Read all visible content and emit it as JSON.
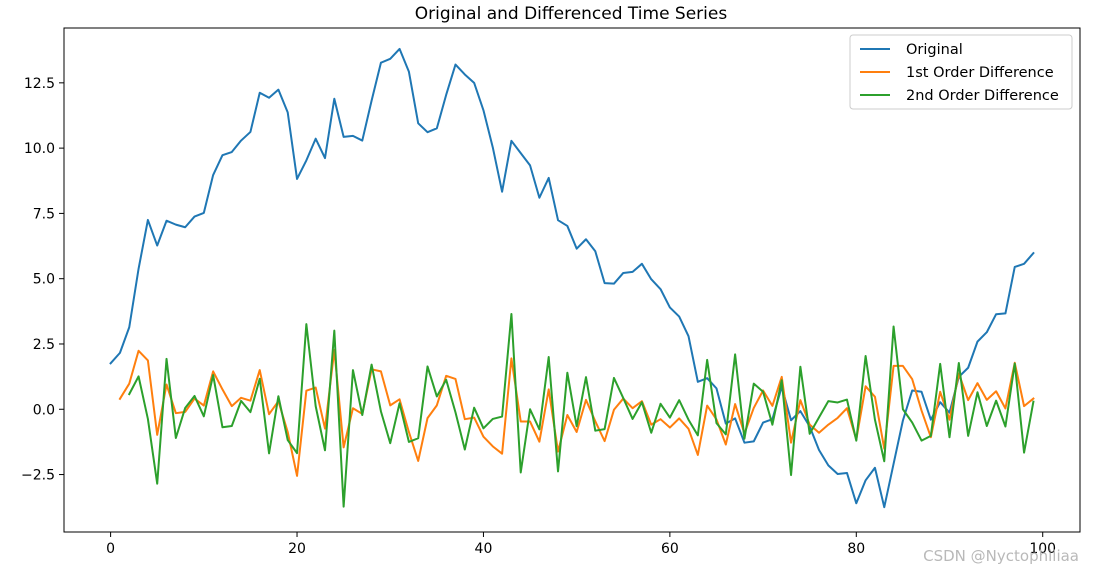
{
  "watermark": "CSDN @Nyctophiliaa",
  "chart_data": {
    "type": "line",
    "title": "Original and Differenced Time Series",
    "xlabel": "",
    "ylabel": "",
    "xlim": [
      -5,
      104
    ],
    "ylim": [
      -4.7,
      14.6
    ],
    "xticks": [
      0,
      20,
      40,
      60,
      80,
      100
    ],
    "xtick_labels": [
      "0",
      "20",
      "40",
      "60",
      "80",
      "100"
    ],
    "yticks": [
      -2.5,
      0.0,
      2.5,
      5.0,
      7.5,
      10.0,
      12.5
    ],
    "ytick_labels": [
      "−2.5",
      "0.0",
      "2.5",
      "5.0",
      "7.5",
      "10.0",
      "12.5"
    ],
    "grid": false,
    "legend_position": "top-right",
    "series": [
      {
        "name": "Original",
        "color": "#1f77b4",
        "x_start": 0,
        "values": [
          1.76,
          2.16,
          3.14,
          5.38,
          7.25,
          6.27,
          7.22,
          7.07,
          6.97,
          7.38,
          7.52,
          8.97,
          9.73,
          9.85,
          10.29,
          10.62,
          12.12,
          11.93,
          12.24,
          11.37,
          8.82,
          9.53,
          10.36,
          9.62,
          11.89,
          10.43,
          10.47,
          10.29,
          11.82,
          13.27,
          13.42,
          13.8,
          12.93,
          10.95,
          10.61,
          10.76,
          12.04,
          13.2,
          12.82,
          12.5,
          11.45,
          10.03,
          8.33,
          10.28,
          9.81,
          9.34,
          8.1,
          8.86,
          7.24,
          7.02,
          6.15,
          6.51,
          6.05,
          4.83,
          4.81,
          5.22,
          5.26,
          5.57,
          4.98,
          4.6,
          3.9,
          3.55,
          2.8,
          1.05,
          1.19,
          0.8,
          -0.55,
          -0.35,
          -1.28,
          -1.23,
          -0.51,
          -0.38,
          0.86,
          -0.42,
          -0.07,
          -0.66,
          -1.56,
          -2.15,
          -2.48,
          -2.44,
          -3.6,
          -2.72,
          -2.24,
          -3.75,
          -2.09,
          -0.43,
          0.72,
          0.67,
          -0.4,
          0.27,
          -0.13,
          1.24,
          1.59,
          2.59,
          2.95,
          3.64,
          3.67,
          5.45,
          5.57,
          5.98
        ]
      },
      {
        "name": "1st Order Difference",
        "color": "#ff7f0e",
        "x_start": 1,
        "values": [
          0.4,
          0.98,
          2.24,
          1.87,
          -0.98,
          0.95,
          -0.15,
          -0.1,
          0.41,
          0.14,
          1.45,
          0.76,
          0.12,
          0.44,
          0.33,
          1.5,
          -0.19,
          0.31,
          -0.87,
          -2.55,
          0.71,
          0.83,
          -0.74,
          2.27,
          -1.46,
          0.04,
          -0.18,
          1.53,
          1.45,
          0.15,
          0.38,
          -0.87,
          -1.98,
          -0.34,
          0.15,
          1.28,
          1.16,
          -0.38,
          -0.32,
          -1.05,
          -1.42,
          -1.7,
          1.95,
          -0.47,
          -0.47,
          -1.24,
          0.76,
          -1.62,
          -0.22,
          -0.87,
          0.36,
          -0.46,
          -1.22,
          -0.02,
          0.41,
          0.04,
          0.31,
          -0.59,
          -0.38,
          -0.7,
          -0.35,
          -0.75,
          -1.75,
          0.14,
          -0.39,
          -1.35,
          0.2,
          -0.93,
          0.05,
          0.72,
          0.13,
          1.24,
          -1.28,
          0.35,
          -0.59,
          -0.9,
          -0.59,
          -0.33,
          0.04,
          -1.16,
          0.88,
          0.48,
          -1.51,
          1.66,
          1.66,
          1.15,
          -0.05,
          -1.07,
          0.67,
          -0.4,
          1.37,
          0.35,
          1.0,
          0.36,
          0.69,
          0.03,
          1.78,
          0.12,
          0.41
        ]
      },
      {
        "name": "2nd Order Difference",
        "color": "#2ca02c",
        "x_start": 2,
        "values": [
          0.58,
          1.26,
          -0.37,
          -2.85,
          1.93,
          -1.1,
          0.05,
          0.51,
          -0.27,
          1.31,
          -0.69,
          -0.64,
          0.32,
          -0.11,
          1.17,
          -1.69,
          0.5,
          -1.18,
          -1.68,
          3.26,
          0.12,
          -1.57,
          3.01,
          -3.73,
          1.5,
          -0.22,
          1.71,
          -0.08,
          -1.3,
          0.23,
          -1.25,
          -1.11,
          1.64,
          0.49,
          1.13,
          -0.12,
          -1.54,
          0.06,
          -0.73,
          -0.37,
          -0.28,
          3.65,
          -2.42,
          0.0,
          -0.77,
          2.0,
          -2.38,
          1.4,
          -0.65,
          1.23,
          -0.82,
          -0.76,
          1.2,
          0.43,
          -0.37,
          0.27,
          -0.9,
          0.21,
          -0.32,
          0.35,
          -0.4,
          -1.0,
          1.89,
          -0.53,
          -0.96,
          2.1,
          -1.13,
          0.98,
          0.67,
          -0.59,
          1.11,
          -2.52,
          1.63,
          -0.94,
          -0.31,
          0.31,
          0.26,
          0.37,
          -1.2,
          2.04,
          -0.4,
          -1.99,
          3.17,
          0.0,
          -0.51,
          -1.2,
          -1.02,
          1.74,
          -1.07,
          1.77,
          -1.02,
          0.65,
          -0.64,
          0.33,
          -0.66,
          1.75,
          -1.66,
          0.29
        ]
      }
    ]
  }
}
